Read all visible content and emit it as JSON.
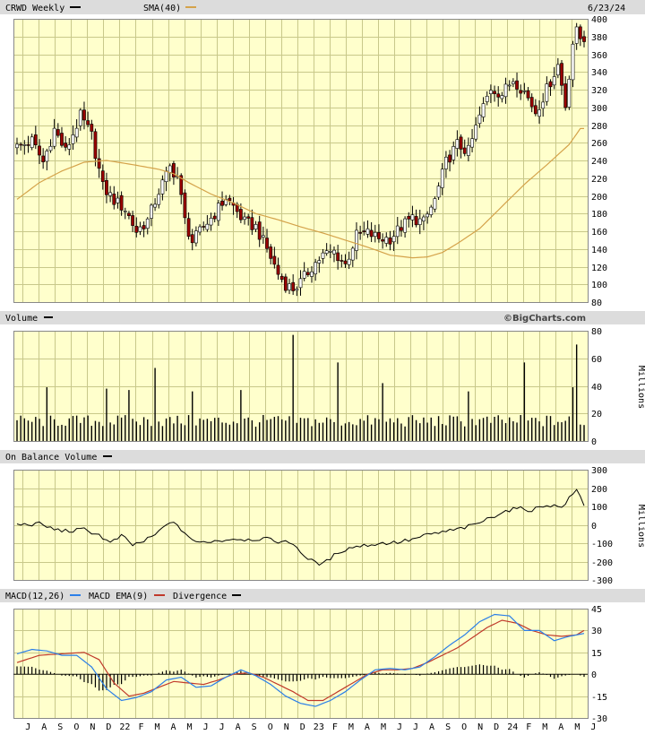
{
  "header": {
    "symbol_label": "CRWD Weekly",
    "sma_label": "SMA(40)",
    "date": "6/23/24",
    "colors": {
      "price": "#000000",
      "sma": "#d4a24a"
    }
  },
  "volume_panel": {
    "label": "Volume",
    "watermark": "©BigCharts.com",
    "unit": "Millions"
  },
  "obv_panel": {
    "label": "On Balance Volume",
    "unit": "Millions"
  },
  "macd_panel": {
    "label": "MACD(12,26)",
    "ema_label": "MACD EMA(9)",
    "div_label": "Divergence",
    "colors": {
      "macd": "#2b7fe8",
      "ema": "#c0392b",
      "div": "#000000"
    }
  },
  "x_axis_labels": [
    "J",
    "A",
    "S",
    "O",
    "N",
    "D",
    "22",
    "F",
    "M",
    "A",
    "M",
    "J",
    "J",
    "A",
    "S",
    "O",
    "N",
    "D",
    "23",
    "F",
    "M",
    "A",
    "M",
    "J",
    "J",
    "A",
    "S",
    "O",
    "N",
    "D",
    "24",
    "F",
    "M",
    "A",
    "M",
    "J"
  ],
  "chart_data": [
    {
      "type": "candlestick",
      "title": "CRWD Weekly",
      "ylim": [
        80,
        400
      ],
      "yticks": [
        80,
        100,
        120,
        140,
        160,
        180,
        200,
        220,
        240,
        260,
        280,
        300,
        320,
        340,
        360,
        380,
        400
      ],
      "price_anchors": [
        [
          0,
          255
        ],
        [
          4,
          262
        ],
        [
          7,
          238
        ],
        [
          10,
          275
        ],
        [
          13,
          250
        ],
        [
          17,
          290
        ],
        [
          20,
          268
        ],
        [
          23,
          210
        ],
        [
          26,
          195
        ],
        [
          29,
          185
        ],
        [
          32,
          160
        ],
        [
          35,
          172
        ],
        [
          38,
          205
        ],
        [
          41,
          232
        ],
        [
          43,
          222
        ],
        [
          45,
          172
        ],
        [
          47,
          148
        ],
        [
          50,
          165
        ],
        [
          53,
          180
        ],
        [
          56,
          198
        ],
        [
          58,
          188
        ],
        [
          61,
          170
        ],
        [
          64,
          165
        ],
        [
          67,
          140
        ],
        [
          70,
          112
        ],
        [
          72,
          100
        ],
        [
          74,
          95
        ],
        [
          76,
          102
        ],
        [
          79,
          120
        ],
        [
          82,
          133
        ],
        [
          85,
          137
        ],
        [
          88,
          122
        ],
        [
          91,
          155
        ],
        [
          94,
          158
        ],
        [
          97,
          152
        ],
        [
          100,
          152
        ],
        [
          103,
          165
        ],
        [
          106,
          175
        ],
        [
          109,
          170
        ],
        [
          112,
          195
        ],
        [
          115,
          238
        ],
        [
          118,
          258
        ],
        [
          121,
          250
        ],
        [
          124,
          290
        ],
        [
          127,
          322
        ],
        [
          130,
          315
        ],
        [
          133,
          332
        ],
        [
          136,
          318
        ],
        [
          139,
          295
        ],
        [
          142,
          320
        ],
        [
          145,
          348
        ],
        [
          147,
          302
        ],
        [
          149,
          373
        ],
        [
          150,
          385
        ],
        [
          151,
          378
        ]
      ],
      "sma_anchors": [
        [
          0,
          196
        ],
        [
          6,
          215
        ],
        [
          12,
          228
        ],
        [
          18,
          238
        ],
        [
          24,
          240
        ],
        [
          30,
          236
        ],
        [
          38,
          230
        ],
        [
          42,
          225
        ],
        [
          46,
          215
        ],
        [
          52,
          202
        ],
        [
          58,
          192
        ],
        [
          64,
          180
        ],
        [
          70,
          173
        ],
        [
          76,
          165
        ],
        [
          82,
          158
        ],
        [
          88,
          150
        ],
        [
          94,
          142
        ],
        [
          100,
          133
        ],
        [
          106,
          130
        ],
        [
          110,
          131
        ],
        [
          114,
          136
        ],
        [
          118,
          146
        ],
        [
          124,
          163
        ],
        [
          130,
          188
        ],
        [
          136,
          213
        ],
        [
          142,
          235
        ],
        [
          148,
          258
        ],
        [
          151,
          276
        ]
      ],
      "volume": {
        "ylim": [
          0,
          80
        ],
        "yticks": [
          0,
          20,
          40,
          60,
          80
        ],
        "spikes": [
          [
            8,
            39
          ],
          [
            24,
            38
          ],
          [
            30,
            37
          ],
          [
            37,
            53
          ],
          [
            47,
            36
          ],
          [
            60,
            37
          ],
          [
            74,
            77
          ],
          [
            86,
            57
          ],
          [
            98,
            42
          ],
          [
            121,
            36
          ],
          [
            136,
            57
          ],
          [
            150,
            70
          ],
          [
            149,
            39
          ]
        ]
      },
      "obv": {
        "ylim": [
          -300,
          300
        ],
        "yticks": [
          -300,
          -200,
          -100,
          0,
          100,
          200,
          300
        ],
        "anchors": [
          [
            0,
            0
          ],
          [
            6,
            5
          ],
          [
            10,
            -25
          ],
          [
            14,
            -35
          ],
          [
            18,
            -25
          ],
          [
            22,
            -55
          ],
          [
            25,
            -100
          ],
          [
            28,
            -60
          ],
          [
            31,
            -110
          ],
          [
            34,
            -90
          ],
          [
            37,
            -55
          ],
          [
            39,
            -20
          ],
          [
            41,
            20
          ],
          [
            44,
            -25
          ],
          [
            48,
            -100
          ],
          [
            51,
            -90
          ],
          [
            55,
            -85
          ],
          [
            58,
            -75
          ],
          [
            62,
            -80
          ],
          [
            66,
            -75
          ],
          [
            70,
            -90
          ],
          [
            74,
            -100
          ],
          [
            78,
            -190
          ],
          [
            82,
            -215
          ],
          [
            86,
            -150
          ],
          [
            90,
            -120
          ],
          [
            94,
            -110
          ],
          [
            98,
            -100
          ],
          [
            102,
            -95
          ],
          [
            106,
            -80
          ],
          [
            110,
            -55
          ],
          [
            114,
            -40
          ],
          [
            118,
            -25
          ],
          [
            122,
            -5
          ],
          [
            126,
            30
          ],
          [
            130,
            70
          ],
          [
            134,
            90
          ],
          [
            138,
            80
          ],
          [
            142,
            110
          ],
          [
            146,
            95
          ],
          [
            150,
            190
          ],
          [
            152,
            110
          ]
        ]
      },
      "macd": {
        "ylim": [
          -30,
          45
        ],
        "yticks": [
          -30,
          -15,
          0,
          15,
          30,
          45
        ],
        "macd_anchors": [
          [
            0,
            14
          ],
          [
            4,
            17
          ],
          [
            8,
            16
          ],
          [
            12,
            13
          ],
          [
            16,
            13
          ],
          [
            20,
            5
          ],
          [
            24,
            -10
          ],
          [
            28,
            -18
          ],
          [
            32,
            -16
          ],
          [
            36,
            -12
          ],
          [
            40,
            -4
          ],
          [
            44,
            -2
          ],
          [
            48,
            -9
          ],
          [
            52,
            -8
          ],
          [
            56,
            -2
          ],
          [
            60,
            3
          ],
          [
            64,
            -1
          ],
          [
            68,
            -7
          ],
          [
            72,
            -15
          ],
          [
            76,
            -20
          ],
          [
            80,
            -22
          ],
          [
            84,
            -18
          ],
          [
            88,
            -12
          ],
          [
            92,
            -4
          ],
          [
            96,
            3
          ],
          [
            100,
            4
          ],
          [
            104,
            3
          ],
          [
            108,
            5
          ],
          [
            112,
            12
          ],
          [
            116,
            20
          ],
          [
            120,
            27
          ],
          [
            124,
            36
          ],
          [
            128,
            41
          ],
          [
            132,
            40
          ],
          [
            136,
            30
          ],
          [
            140,
            30
          ],
          [
            144,
            23
          ],
          [
            148,
            26
          ],
          [
            152,
            28
          ]
        ],
        "ema_anchors": [
          [
            0,
            8
          ],
          [
            6,
            13
          ],
          [
            12,
            14
          ],
          [
            18,
            15
          ],
          [
            22,
            10
          ],
          [
            26,
            -6
          ],
          [
            30,
            -15
          ],
          [
            34,
            -13
          ],
          [
            38,
            -9
          ],
          [
            42,
            -5
          ],
          [
            46,
            -6
          ],
          [
            50,
            -7
          ],
          [
            54,
            -4
          ],
          [
            58,
            0
          ],
          [
            62,
            1
          ],
          [
            66,
            -2
          ],
          [
            70,
            -7
          ],
          [
            74,
            -12
          ],
          [
            78,
            -18
          ],
          [
            82,
            -18
          ],
          [
            86,
            -12
          ],
          [
            90,
            -6
          ],
          [
            94,
            0
          ],
          [
            98,
            3
          ],
          [
            102,
            3
          ],
          [
            106,
            4
          ],
          [
            110,
            8
          ],
          [
            114,
            13
          ],
          [
            118,
            18
          ],
          [
            122,
            25
          ],
          [
            126,
            32
          ],
          [
            130,
            37
          ],
          [
            134,
            35
          ],
          [
            138,
            30
          ],
          [
            142,
            27
          ],
          [
            146,
            26
          ],
          [
            150,
            27
          ],
          [
            152,
            30
          ]
        ]
      }
    }
  ]
}
